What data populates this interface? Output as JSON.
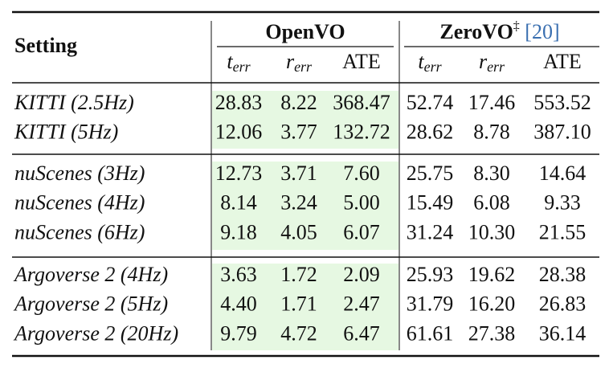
{
  "header": {
    "setting": "Setting",
    "groups": [
      {
        "name": "OpenVO"
      },
      {
        "name": "ZeroVO",
        "mark": "‡",
        "ref": "[20]"
      }
    ],
    "columns": [
      {
        "base": "t",
        "sub": "err"
      },
      {
        "base": "r",
        "sub": "err"
      },
      {
        "base": "ATE"
      }
    ]
  },
  "sections": [
    {
      "rows": [
        {
          "setting": "KITTI (2.5Hz)",
          "values": [
            "28.83",
            "8.22",
            "368.47",
            "52.74",
            "17.46",
            "553.52"
          ]
        },
        {
          "setting": "KITTI (5Hz)",
          "values": [
            "12.06",
            "3.77",
            "132.72",
            "28.62",
            "8.78",
            "387.10"
          ]
        }
      ]
    },
    {
      "rows": [
        {
          "setting": "nuScenes (3Hz)",
          "values": [
            "12.73",
            "3.71",
            "7.60",
            "25.75",
            "8.30",
            "14.64"
          ]
        },
        {
          "setting": "nuScenes (4Hz)",
          "values": [
            "8.14",
            "3.24",
            "5.00",
            "15.49",
            "6.08",
            "9.33"
          ]
        },
        {
          "setting": "nuScenes (6Hz)",
          "values": [
            "9.18",
            "4.05",
            "6.07",
            "31.24",
            "10.30",
            "21.55"
          ]
        }
      ]
    },
    {
      "rows": [
        {
          "setting": "Argoverse 2 (4Hz)",
          "values": [
            "3.63",
            "1.72",
            "2.09",
            "25.93",
            "19.62",
            "28.38"
          ]
        },
        {
          "setting": "Argoverse 2 (5Hz)",
          "values": [
            "4.40",
            "1.71",
            "2.47",
            "31.79",
            "16.20",
            "26.83"
          ]
        },
        {
          "setting": "Argoverse 2 (20Hz)",
          "values": [
            "9.79",
            "4.72",
            "6.47",
            "61.61",
            "27.38",
            "36.14"
          ]
        }
      ]
    }
  ]
}
